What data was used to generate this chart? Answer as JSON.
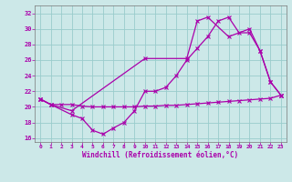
{
  "color": "#aa00aa",
  "bg_color": "#cce8e8",
  "grid_color": "#99cccc",
  "ylim": [
    15.5,
    33.0
  ],
  "xlim": [
    -0.5,
    23.5
  ],
  "xlabel": "Windchill (Refroidissement éolien,°C)",
  "yticks": [
    16,
    18,
    20,
    22,
    24,
    26,
    28,
    30,
    32
  ],
  "xticks": [
    0,
    1,
    2,
    3,
    4,
    5,
    6,
    7,
    8,
    9,
    10,
    11,
    12,
    13,
    14,
    15,
    16,
    17,
    18,
    19,
    20,
    21,
    22,
    23
  ],
  "upper_x": [
    0,
    1,
    3,
    10,
    14,
    15,
    16,
    18,
    20,
    21,
    22,
    23
  ],
  "upper_y": [
    21.0,
    20.3,
    19.5,
    26.2,
    26.2,
    31.0,
    31.5,
    29.0,
    30.0,
    27.2,
    23.2,
    21.5
  ],
  "mid_x": [
    0,
    1,
    2,
    3,
    4,
    5,
    6,
    7,
    8,
    9,
    10,
    11,
    12,
    13,
    14,
    15,
    16,
    17,
    18,
    19,
    20,
    21,
    22,
    23
  ],
  "mid_y": [
    21.0,
    20.3,
    20.3,
    20.3,
    20.1,
    20.0,
    20.0,
    20.0,
    20.0,
    20.0,
    20.1,
    20.1,
    20.2,
    20.2,
    20.3,
    20.4,
    20.5,
    20.6,
    20.7,
    20.8,
    20.9,
    21.0,
    21.1,
    21.5
  ],
  "lower_x": [
    0,
    1,
    3,
    4,
    5,
    6,
    7,
    8,
    9,
    10,
    11,
    12,
    13,
    14,
    15,
    16,
    17,
    18,
    19,
    20,
    21,
    22,
    23
  ],
  "lower_y": [
    21.0,
    20.3,
    19.0,
    18.5,
    17.0,
    16.5,
    17.3,
    18.0,
    19.5,
    22.0,
    22.0,
    22.5,
    24.0,
    26.0,
    27.5,
    29.0,
    31.0,
    31.5,
    29.5,
    29.5,
    27.2,
    23.2,
    21.5
  ]
}
